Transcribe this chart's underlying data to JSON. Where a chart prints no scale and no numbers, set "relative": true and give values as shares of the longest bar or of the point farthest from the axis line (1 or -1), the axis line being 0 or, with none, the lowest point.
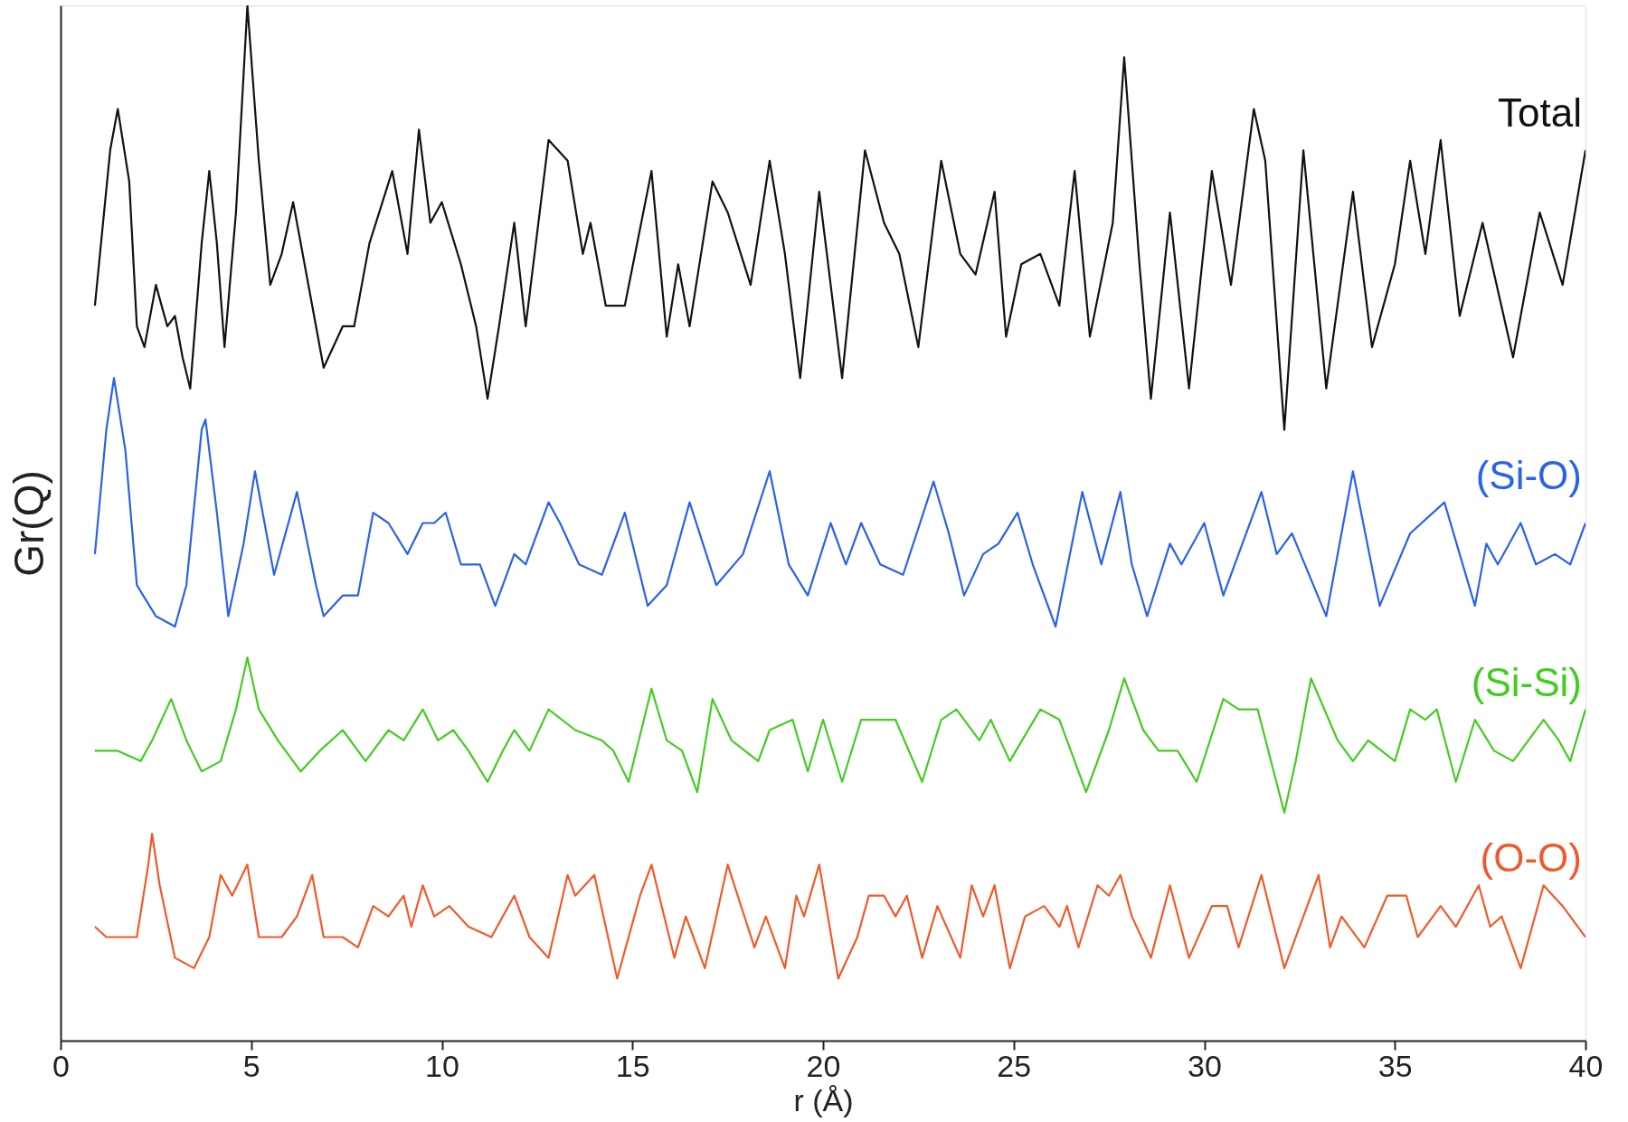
{
  "chart_data": {
    "type": "line",
    "relative": true,
    "xlabel": "r (Å)",
    "ylabel": "Gr(Q)",
    "xlim": [
      0,
      40
    ],
    "xticks": [
      0,
      5,
      10,
      15,
      20,
      25,
      30,
      35,
      40
    ],
    "grid": false,
    "legend": false,
    "series": [
      {
        "name": "Total",
        "color": "#111111",
        "x": [
          0.9,
          1.3,
          1.5,
          1.8,
          2.0,
          2.2,
          2.5,
          2.8,
          3.0,
          3.2,
          3.4,
          3.7,
          3.9,
          4.1,
          4.3,
          4.6,
          4.9,
          5.2,
          5.5,
          5.8,
          6.1,
          6.4,
          6.9,
          7.4,
          7.7,
          8.1,
          8.7,
          9.1,
          9.4,
          9.7,
          10.0,
          10.5,
          10.9,
          11.2,
          11.5,
          11.9,
          12.2,
          12.8,
          13.3,
          13.7,
          13.9,
          14.3,
          14.8,
          15.5,
          15.9,
          16.2,
          16.5,
          17.1,
          17.5,
          18.1,
          18.6,
          19.0,
          19.4,
          19.9,
          20.5,
          21.1,
          21.6,
          22.0,
          22.5,
          23.1,
          23.6,
          24.0,
          24.5,
          24.8,
          25.2,
          25.7,
          26.2,
          26.6,
          27.0,
          27.6,
          27.9,
          28.3,
          28.6,
          29.1,
          29.6,
          30.2,
          30.7,
          31.3,
          31.6,
          32.1,
          32.6,
          33.2,
          33.9,
          34.4,
          35.0,
          35.4,
          35.8,
          36.2,
          36.7,
          37.3,
          38.1,
          38.8,
          39.4,
          40.0
        ],
        "values": [
          0.71,
          0.86,
          0.9,
          0.83,
          0.69,
          0.67,
          0.73,
          0.69,
          0.7,
          0.66,
          0.63,
          0.77,
          0.84,
          0.77,
          0.67,
          0.8,
          1.0,
          0.85,
          0.73,
          0.76,
          0.81,
          0.75,
          0.65,
          0.69,
          0.69,
          0.77,
          0.84,
          0.76,
          0.88,
          0.79,
          0.81,
          0.75,
          0.69,
          0.62,
          0.69,
          0.79,
          0.69,
          0.87,
          0.85,
          0.76,
          0.79,
          0.71,
          0.71,
          0.84,
          0.68,
          0.75,
          0.69,
          0.83,
          0.8,
          0.73,
          0.85,
          0.76,
          0.64,
          0.82,
          0.64,
          0.86,
          0.79,
          0.76,
          0.67,
          0.85,
          0.76,
          0.74,
          0.82,
          0.68,
          0.75,
          0.76,
          0.71,
          0.84,
          0.68,
          0.79,
          0.95,
          0.75,
          0.62,
          0.8,
          0.63,
          0.84,
          0.73,
          0.9,
          0.85,
          0.59,
          0.86,
          0.63,
          0.82,
          0.67,
          0.75,
          0.85,
          0.76,
          0.87,
          0.7,
          0.79,
          0.66,
          0.8,
          0.73,
          0.86
        ]
      },
      {
        "name": "(Si-O)",
        "color": "#2a62e8",
        "x": [
          0.9,
          1.2,
          1.4,
          1.7,
          2.0,
          2.5,
          3.0,
          3.3,
          3.7,
          3.8,
          4.1,
          4.4,
          4.8,
          5.1,
          5.6,
          6.2,
          6.7,
          6.9,
          7.4,
          7.8,
          8.2,
          8.6,
          9.1,
          9.5,
          9.8,
          10.1,
          10.5,
          11.0,
          11.4,
          11.9,
          12.2,
          12.8,
          13.1,
          13.6,
          14.2,
          14.8,
          15.4,
          15.9,
          16.5,
          17.2,
          17.9,
          18.6,
          19.1,
          19.6,
          20.2,
          20.6,
          21.0,
          21.5,
          22.1,
          22.9,
          23.3,
          23.7,
          24.2,
          24.6,
          25.1,
          25.5,
          26.1,
          26.8,
          27.3,
          27.8,
          28.1,
          28.5,
          29.1,
          29.4,
          30.0,
          30.5,
          31.5,
          31.9,
          32.3,
          33.2,
          33.9,
          34.6,
          35.4,
          36.3,
          37.1,
          37.4,
          37.7,
          38.3,
          38.7,
          39.2,
          39.6,
          40.0
        ],
        "values": [
          0.47,
          0.59,
          0.64,
          0.57,
          0.44,
          0.41,
          0.4,
          0.44,
          0.59,
          0.6,
          0.51,
          0.41,
          0.48,
          0.55,
          0.45,
          0.53,
          0.44,
          0.41,
          0.43,
          0.43,
          0.51,
          0.5,
          0.47,
          0.5,
          0.5,
          0.51,
          0.46,
          0.46,
          0.42,
          0.47,
          0.46,
          0.52,
          0.5,
          0.46,
          0.45,
          0.51,
          0.42,
          0.44,
          0.52,
          0.44,
          0.47,
          0.55,
          0.46,
          0.43,
          0.5,
          0.46,
          0.5,
          0.46,
          0.45,
          0.54,
          0.49,
          0.43,
          0.47,
          0.48,
          0.51,
          0.46,
          0.4,
          0.53,
          0.46,
          0.53,
          0.46,
          0.41,
          0.48,
          0.46,
          0.5,
          0.43,
          0.53,
          0.47,
          0.49,
          0.41,
          0.55,
          0.42,
          0.49,
          0.52,
          0.42,
          0.48,
          0.46,
          0.5,
          0.46,
          0.47,
          0.46,
          0.5
        ]
      },
      {
        "name": "(Si-Si)",
        "color": "#44cc22",
        "x": [
          0.9,
          1.5,
          2.1,
          2.4,
          2.9,
          3.3,
          3.7,
          4.2,
          4.6,
          4.9,
          5.2,
          5.7,
          6.3,
          6.8,
          7.4,
          8.0,
          8.6,
          9.0,
          9.5,
          9.9,
          10.3,
          10.7,
          11.2,
          11.6,
          11.9,
          12.3,
          12.8,
          13.5,
          14.2,
          14.5,
          14.9,
          15.5,
          15.9,
          16.3,
          16.7,
          17.1,
          17.6,
          18.3,
          18.6,
          19.2,
          19.6,
          20.0,
          20.5,
          21.0,
          21.4,
          21.9,
          22.6,
          23.1,
          23.5,
          24.1,
          24.4,
          24.9,
          25.7,
          26.2,
          26.9,
          27.5,
          27.9,
          28.4,
          28.8,
          29.3,
          29.8,
          30.5,
          30.9,
          31.4,
          32.1,
          32.4,
          32.8,
          33.5,
          33.9,
          34.3,
          35.0,
          35.4,
          35.8,
          36.1,
          36.6,
          37.1,
          37.6,
          38.1,
          38.9,
          39.3,
          39.6,
          40.0
        ],
        "values": [
          0.28,
          0.28,
          0.27,
          0.29,
          0.33,
          0.29,
          0.26,
          0.27,
          0.32,
          0.37,
          0.32,
          0.29,
          0.26,
          0.28,
          0.3,
          0.27,
          0.3,
          0.29,
          0.32,
          0.29,
          0.3,
          0.28,
          0.25,
          0.28,
          0.3,
          0.28,
          0.32,
          0.3,
          0.29,
          0.28,
          0.25,
          0.34,
          0.29,
          0.28,
          0.24,
          0.33,
          0.29,
          0.27,
          0.3,
          0.31,
          0.26,
          0.31,
          0.25,
          0.31,
          0.31,
          0.31,
          0.25,
          0.31,
          0.32,
          0.29,
          0.31,
          0.27,
          0.32,
          0.31,
          0.24,
          0.3,
          0.35,
          0.3,
          0.28,
          0.28,
          0.25,
          0.33,
          0.32,
          0.32,
          0.22,
          0.27,
          0.35,
          0.29,
          0.27,
          0.29,
          0.27,
          0.32,
          0.31,
          0.32,
          0.25,
          0.31,
          0.28,
          0.27,
          0.31,
          0.29,
          0.27,
          0.32
        ]
      },
      {
        "name": "(O-O)",
        "color": "#f05a2a",
        "x": [
          0.9,
          1.2,
          1.6,
          2.0,
          2.3,
          2.4,
          2.6,
          3.0,
          3.5,
          3.9,
          4.2,
          4.5,
          4.9,
          5.2,
          5.8,
          6.2,
          6.6,
          6.9,
          7.4,
          7.8,
          8.2,
          8.6,
          9.0,
          9.2,
          9.5,
          9.8,
          10.2,
          10.7,
          11.3,
          11.9,
          12.3,
          12.8,
          13.3,
          13.5,
          14.0,
          14.6,
          15.2,
          15.5,
          16.1,
          16.4,
          16.9,
          17.5,
          18.2,
          18.5,
          19.0,
          19.3,
          19.5,
          19.9,
          20.4,
          20.9,
          21.2,
          21.6,
          21.9,
          22.2,
          22.6,
          23.0,
          23.6,
          23.9,
          24.2,
          24.5,
          24.9,
          25.3,
          25.8,
          26.2,
          26.4,
          26.7,
          27.2,
          27.5,
          27.8,
          28.1,
          28.6,
          29.1,
          29.6,
          30.2,
          30.6,
          30.9,
          31.5,
          32.1,
          32.6,
          33.0,
          33.3,
          33.6,
          34.2,
          34.8,
          35.1,
          35.3,
          35.6,
          36.2,
          36.6,
          37.2,
          37.5,
          37.8,
          38.3,
          38.9,
          39.4,
          40.0
        ],
        "values": [
          0.11,
          0.1,
          0.1,
          0.1,
          0.17,
          0.2,
          0.15,
          0.08,
          0.07,
          0.1,
          0.16,
          0.14,
          0.17,
          0.1,
          0.1,
          0.12,
          0.16,
          0.1,
          0.1,
          0.09,
          0.13,
          0.12,
          0.14,
          0.11,
          0.15,
          0.12,
          0.13,
          0.11,
          0.1,
          0.14,
          0.1,
          0.08,
          0.16,
          0.14,
          0.16,
          0.06,
          0.14,
          0.17,
          0.08,
          0.12,
          0.07,
          0.17,
          0.09,
          0.12,
          0.07,
          0.14,
          0.12,
          0.17,
          0.06,
          0.1,
          0.14,
          0.14,
          0.12,
          0.14,
          0.08,
          0.13,
          0.08,
          0.15,
          0.12,
          0.15,
          0.07,
          0.12,
          0.13,
          0.11,
          0.13,
          0.09,
          0.15,
          0.14,
          0.16,
          0.12,
          0.08,
          0.15,
          0.08,
          0.13,
          0.13,
          0.09,
          0.16,
          0.07,
          0.12,
          0.16,
          0.09,
          0.12,
          0.09,
          0.14,
          0.14,
          0.14,
          0.1,
          0.13,
          0.11,
          0.15,
          0.11,
          0.12,
          0.07,
          0.15,
          0.13,
          0.1
        ]
      }
    ]
  }
}
